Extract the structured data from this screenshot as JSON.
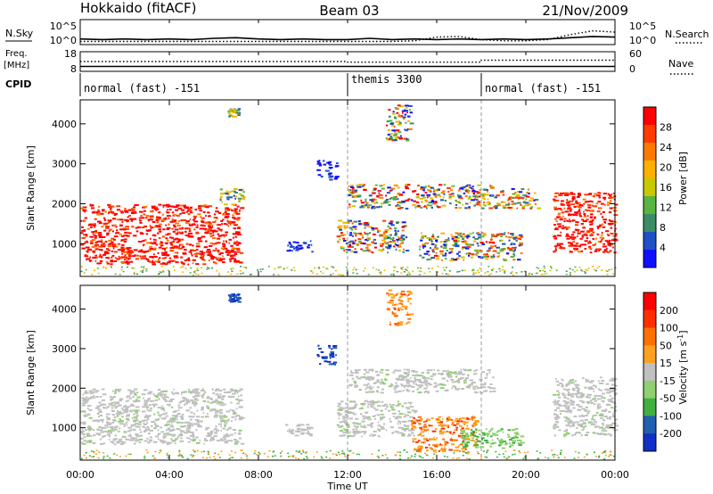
{
  "header": {
    "station": "Hokkaido (fitACF)",
    "beam": "Beam 03",
    "date": "21/Nov/2009"
  },
  "chart_data": [
    {
      "type": "line",
      "name": "noise-panel",
      "left_label": "N.Sky",
      "right_label": "N.Search",
      "left_ticks": [
        "10^5",
        "10^0"
      ],
      "right_ticks": [
        "10^5",
        "10^0"
      ],
      "series": [
        {
          "name": "N.Sky",
          "style": "solid",
          "x": [
            0,
            1,
            2,
            3,
            4,
            5,
            6,
            7,
            8,
            9,
            10,
            11,
            12,
            13,
            14,
            15,
            16,
            17,
            18,
            19,
            20,
            21,
            22,
            23,
            24
          ],
          "values": [
            0.9,
            0.8,
            0.9,
            0.8,
            0.9,
            0.8,
            1.0,
            1.1,
            0.9,
            0.8,
            0.9,
            0.8,
            0.8,
            1.0,
            0.8,
            0.9,
            0.8,
            0.9,
            0.8,
            0.9,
            0.8,
            0.9,
            1.1,
            1.3,
            1.2
          ]
        },
        {
          "name": "N.Search",
          "style": "dotted",
          "x": [
            0,
            1,
            2,
            3,
            4,
            5,
            6,
            7,
            8,
            9,
            10,
            11,
            12,
            13,
            14,
            15,
            16,
            17,
            18,
            19,
            20,
            21,
            22,
            23,
            24
          ],
          "values": [
            0.5,
            0.5,
            0.5,
            0.5,
            0.5,
            0.5,
            0.5,
            0.5,
            0.5,
            0.5,
            0.5,
            0.5,
            0.5,
            0.5,
            0.5,
            0.6,
            1.2,
            1.3,
            0.8,
            0.6,
            0.6,
            0.8,
            1.6,
            2.2,
            2.0
          ]
        }
      ]
    },
    {
      "type": "line",
      "name": "freq-panel",
      "left_label_line1": "Freq.",
      "left_label_line2": "[MHz]",
      "right_label": "Nave",
      "left_ticks": [
        "18",
        "8"
      ],
      "right_ticks": [
        "60",
        "0"
      ],
      "series": [
        {
          "name": "Freq",
          "style": "solid",
          "x": [
            0,
            24
          ],
          "values": [
            10.5,
            10.5
          ]
        },
        {
          "name": "Nave",
          "style": "dotted",
          "x": [
            0,
            12,
            12,
            18,
            18,
            24
          ],
          "values": [
            30,
            30,
            28,
            28,
            34,
            34
          ]
        }
      ]
    },
    {
      "type": "table",
      "name": "cpid-bar",
      "label": "CPID",
      "segments": [
        {
          "start": 0,
          "end": 12,
          "label": "normal (fast) -151"
        },
        {
          "start": 12,
          "end": 18,
          "label": "themis 3300"
        },
        {
          "start": 18,
          "end": 24,
          "label": "normal (fast) -151"
        }
      ]
    },
    {
      "type": "heatmap",
      "name": "power",
      "ylabel": "Slant Range [km]",
      "ylim": [
        180,
        4600
      ],
      "yticks": [
        "1000",
        "2000",
        "3000",
        "4000"
      ],
      "colorbar_label": "Power [dB]",
      "colorbar_ticks": [
        "28",
        "24",
        "20",
        "16",
        "12",
        "8",
        "4"
      ],
      "colorbar_range": [
        0,
        32
      ],
      "colorbar_colors": [
        "#1010ff",
        "#2050c8",
        "#3c8c64",
        "#5ab441",
        "#c8c800",
        "#ffb000",
        "#ff7800",
        "#ff3c00",
        "#ff0000"
      ],
      "regions": [
        {
          "x": [
            0.0,
            7.2
          ],
          "y": [
            500,
            2000
          ],
          "level": "high"
        },
        {
          "x": [
            6.2,
            7.3
          ],
          "y": [
            2000,
            2400
          ],
          "level": "mid"
        },
        {
          "x": [
            6.6,
            7.1
          ],
          "y": [
            4200,
            4400
          ],
          "level": "mid"
        },
        {
          "x": [
            9.2,
            10.4
          ],
          "y": [
            800,
            1100
          ],
          "level": "low"
        },
        {
          "x": [
            10.6,
            11.5
          ],
          "y": [
            2600,
            3100
          ],
          "level": "low"
        },
        {
          "x": [
            11.5,
            14.6
          ],
          "y": [
            800,
            1600
          ],
          "level": "mixed"
        },
        {
          "x": [
            12.0,
            18.5
          ],
          "y": [
            1900,
            2500
          ],
          "level": "mixed"
        },
        {
          "x": [
            13.7,
            14.8
          ],
          "y": [
            3600,
            4500
          ],
          "level": "mixed"
        },
        {
          "x": [
            15.2,
            19.8
          ],
          "y": [
            600,
            1300
          ],
          "level": "mixed"
        },
        {
          "x": [
            18.5,
            20.5
          ],
          "y": [
            1900,
            2400
          ],
          "level": "mixed"
        },
        {
          "x": [
            21.2,
            24.0
          ],
          "y": [
            800,
            2300
          ],
          "level": "high"
        }
      ]
    },
    {
      "type": "heatmap",
      "name": "velocity",
      "ylabel": "Slant Range [km]",
      "ylim": [
        180,
        4600
      ],
      "yticks": [
        "1000",
        "2000",
        "3000",
        "4000"
      ],
      "colorbar_label": "Velocity [m s",
      "colorbar_label_sup": "-1",
      "colorbar_label_end": "]",
      "colorbar_ticks": [
        "200",
        "100",
        "50",
        "15",
        "-15",
        "-50",
        "-100",
        "-200"
      ],
      "colorbar_colors": [
        "#1030c8",
        "#2060b0",
        "#40b040",
        "#90d070",
        "#c0c0c0",
        "#ffa020",
        "#ff7000",
        "#ff3000",
        "#ff0000"
      ],
      "regions": [
        {
          "x": [
            0.0,
            7.2
          ],
          "y": [
            600,
            2000
          ],
          "level": "ground"
        },
        {
          "x": [
            6.6,
            7.1
          ],
          "y": [
            4200,
            4400
          ],
          "level": "toward"
        },
        {
          "x": [
            9.2,
            10.4
          ],
          "y": [
            800,
            1100
          ],
          "level": "ground"
        },
        {
          "x": [
            10.6,
            11.5
          ],
          "y": [
            2600,
            3100
          ],
          "level": "toward"
        },
        {
          "x": [
            11.5,
            15.0
          ],
          "y": [
            800,
            1700
          ],
          "level": "ground"
        },
        {
          "x": [
            12.0,
            18.5
          ],
          "y": [
            1900,
            2500
          ],
          "level": "ground"
        },
        {
          "x": [
            13.7,
            14.8
          ],
          "y": [
            3600,
            4500
          ],
          "level": "away"
        },
        {
          "x": [
            14.8,
            17.8
          ],
          "y": [
            400,
            1300
          ],
          "level": "away"
        },
        {
          "x": [
            17.0,
            19.8
          ],
          "y": [
            500,
            1000
          ],
          "level": "weak"
        },
        {
          "x": [
            21.2,
            24.0
          ],
          "y": [
            800,
            2300
          ],
          "level": "ground"
        }
      ]
    }
  ],
  "xaxis": {
    "label": "Time UT",
    "ticks": [
      "00:00",
      "04:00",
      "08:00",
      "12:00",
      "16:00",
      "20:00",
      "00:00"
    ],
    "xlim": [
      0,
      24
    ]
  }
}
